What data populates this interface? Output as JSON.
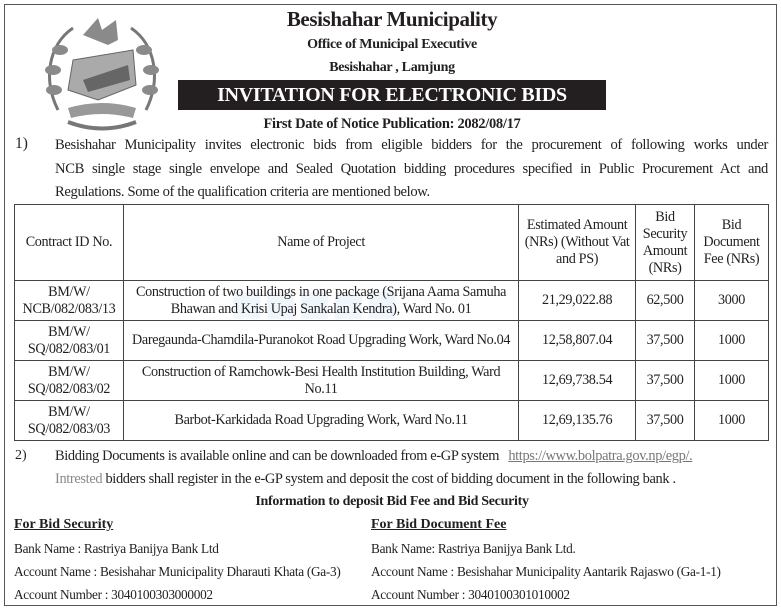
{
  "header": {
    "org": "Besishahar Municipality",
    "office": "Office of Municipal Executive",
    "location": "Besishahar , Lamjung",
    "banner": "INVITATION FOR ELECTRONIC BIDS",
    "notice_date": "First Date of Notice Publication: 2082/08/17"
  },
  "section1": {
    "number": "1)",
    "lines": [
      "Besishahar Municipality invites electronic bids from eligible bidders for the procurement of following works under",
      "NCB single stage single envelope and Sealed Quotation bidding procedures specified in Public Procurement Act and",
      "Regulations. Some of the qualification criteria are mentioned below."
    ]
  },
  "table": {
    "headers": [
      "Contract ID No.",
      "Name of Project",
      "Estimated Amount (NRs) (Without Vat and PS)",
      "Bid Security Amount (NRs)",
      "Bid Document Fee (NRs)"
    ],
    "rows": [
      {
        "id": "BM/W/ NCB/082/083/13",
        "project": "Construction of two buildings in one package (Srijana Aama Samuha Bhawan and Krisi Upaj Sankalan Kendra), Ward No. 01",
        "estimate": "21,29,022.88",
        "security": "62,500",
        "fee": "3000"
      },
      {
        "id": "BM/W/ SQ/082/083/01",
        "project": "Daregaunda-Chamdila-Puranokot Road Upgrading Work, Ward No.04",
        "estimate": "12,58,807.04",
        "security": "37,500",
        "fee": "1000"
      },
      {
        "id": "BM/W/ SQ/082/083/02",
        "project": "Construction of Ramchowk-Besi Health Institution Building, Ward No.11",
        "estimate": "12,69,738.54",
        "security": "37,500",
        "fee": "1000"
      },
      {
        "id": "BM/W/ SQ/082/083/03",
        "project": "Barbot-Karkidada Road Upgrading Work, Ward No.11",
        "estimate": "12,69,135.76",
        "security": "37,500",
        "fee": "1000"
      }
    ]
  },
  "section2": {
    "number": "2)",
    "line1": "Bidding Documents is available online and can be downloaded from e-GP system",
    "link": "https://www.bolpatra.gov.np/egp/.",
    "line2_grey": "Intrested",
    "line2": "bidders shall register in the e-GP system and deposit the cost of bidding document in the following bank ."
  },
  "deposit": {
    "heading": "Information to deposit Bid Fee and Bid Security",
    "security": {
      "title": "For Bid Security",
      "bank": "Bank Name : Rastriya Banijya Bank Ltd",
      "account_name": "Account Name : Besishahar Municipality Dharauti Khata (Ga-3)",
      "account_number": "Account Number : 3040100303000002"
    },
    "document_fee": {
      "title": "For Bid Document Fee",
      "bank": "Bank Name: Rastriya Banijya Bank Ltd.",
      "account_name": "Account Name : Besishahar Municipality Aantarik Rajaswo (Ga-1-1)",
      "account_number": "Account Number : 3040100301010002"
    }
  }
}
